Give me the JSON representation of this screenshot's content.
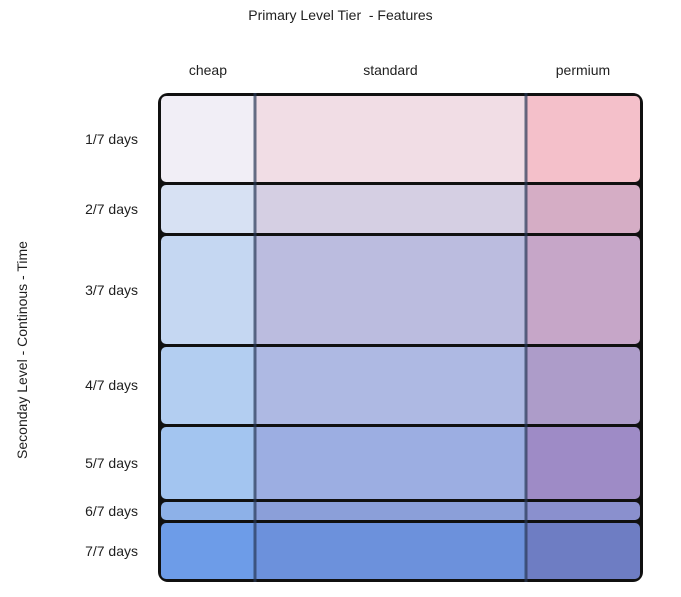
{
  "title": "Primary Level Tier  - Features",
  "y_axis_label": "Seconday Level - Continous - Time",
  "chart_data": {
    "type": "heatmap",
    "subtype": "mosaic",
    "title": "Primary Level Tier  - Features",
    "xlabel": "",
    "ylabel": "Seconday Level - Continous - Time",
    "legend": "none",
    "grid": "off",
    "border_color": "#101010",
    "divider_color": "#283755",
    "columns": [
      {
        "label": "cheap",
        "width_pct": 19.6
      },
      {
        "label": "standard",
        "width_pct": 56.6
      },
      {
        "label": "permium",
        "width_pct": 23.8
      }
    ],
    "rows": [
      {
        "label": "1/7 days",
        "height_pct": 18.6,
        "colors": [
          "#f1eef6",
          "#f1dde5",
          "#f4c0ca"
        ]
      },
      {
        "label": "2/7 days",
        "height_pct": 10.2,
        "colors": [
          "#d7e1f3",
          "#d5cfe3",
          "#d5adc5"
        ]
      },
      {
        "label": "3/7 days",
        "height_pct": 23.3,
        "colors": [
          "#c5d7f2",
          "#bbbcdf",
          "#c6a6c8"
        ]
      },
      {
        "label": "4/7 days",
        "height_pct": 16.4,
        "colors": [
          "#b3cef1",
          "#aeb9e3",
          "#ad9cc9"
        ]
      },
      {
        "label": "5/7 days",
        "height_pct": 15.6,
        "colors": [
          "#a3c5f0",
          "#9caee2",
          "#9e8bc6"
        ]
      },
      {
        "label": "6/7 days",
        "height_pct": 3.9,
        "colors": [
          "#8db1e8",
          "#8b9fd9",
          "#8a90ce"
        ]
      },
      {
        "label": "7/7 days",
        "height_pct": 12.0,
        "colors": [
          "#6d9ce8",
          "#6c91dc",
          "#6e7dc3"
        ]
      }
    ]
  }
}
